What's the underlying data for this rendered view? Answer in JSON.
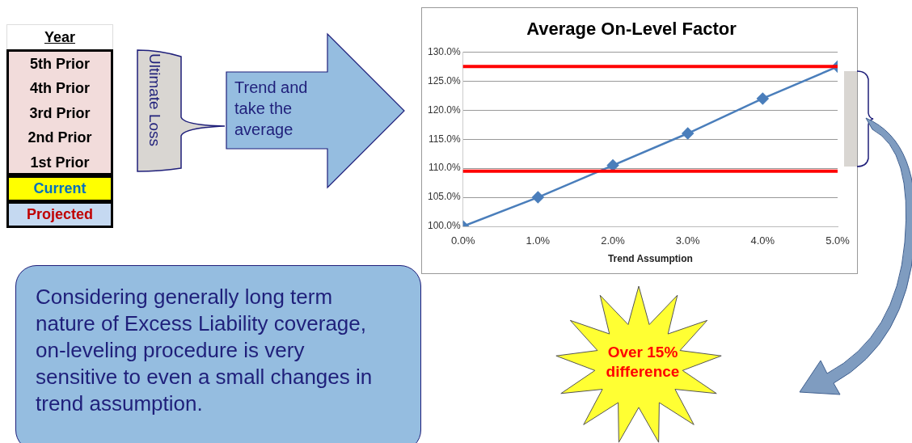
{
  "chart_data": {
    "type": "line",
    "title": "Average On-Level Factor",
    "xlabel": "Trend Assumption",
    "x": [
      0,
      1,
      2,
      3,
      4,
      5
    ],
    "series": [
      {
        "color": "#4a7ebb",
        "values": [
          100,
          105,
          110.5,
          116,
          122,
          127.5
        ]
      }
    ],
    "xlim": [
      0,
      5
    ],
    "xticks": [
      {
        "value": 0,
        "label": "0.0%"
      },
      {
        "value": 1,
        "label": "1.0%"
      },
      {
        "value": 2,
        "label": "2.0%"
      },
      {
        "value": 3,
        "label": "3.0%"
      },
      {
        "value": 4,
        "label": "4.0%"
      },
      {
        "value": 5,
        "label": "5.0%"
      }
    ],
    "ylim": [
      100,
      130
    ],
    "yticks": [
      {
        "value": 100,
        "label": "100.0%"
      },
      {
        "value": 105,
        "label": "105.0%"
      },
      {
        "value": 110,
        "label": "110.0%"
      },
      {
        "value": 115,
        "label": "115.0%"
      },
      {
        "value": 120,
        "label": "120.0%"
      },
      {
        "value": 125,
        "label": "125.0%"
      },
      {
        "value": 130,
        "label": "130.0%"
      }
    ],
    "grid": "y",
    "legend": false,
    "marker": "diamond",
    "line_style": "solid",
    "ref_lines": [
      {
        "axis": "y",
        "value": 127.5,
        "color": "#ff0000"
      },
      {
        "axis": "y",
        "value": 109.5,
        "color": "#ff0000"
      }
    ],
    "annotations": [
      "Year",
      "5th Prior",
      "4th Prior",
      "3rd Prior",
      "2nd Prior",
      "1st Prior",
      "Current",
      "Projected",
      "Ultimate Loss",
      "Trend and take the average",
      "Considering generally long term nature of Excess Liability coverage, on-leveling procedure is very sensitive to even a small changes in trend assumption.",
      "Over 15% difference"
    ]
  }
}
